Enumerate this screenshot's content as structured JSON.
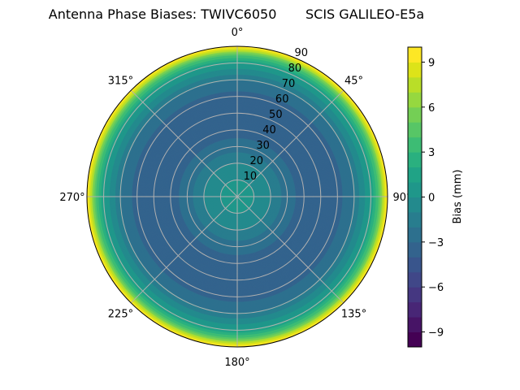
{
  "chart_data": {
    "type": "polar-contour",
    "title": "Antenna Phase Biases: TWIVC6050       SCIS GALILEO-E5a",
    "angle_ticks": [
      {
        "deg": 0,
        "label": "0°"
      },
      {
        "deg": 45,
        "label": "45°"
      },
      {
        "deg": 90,
        "label": "90°"
      },
      {
        "deg": 135,
        "label": "135°"
      },
      {
        "deg": 180,
        "label": "180°"
      },
      {
        "deg": 225,
        "label": "225°"
      },
      {
        "deg": 270,
        "label": "270°"
      },
      {
        "deg": 315,
        "label": "315°"
      }
    ],
    "radial_ticks": [
      10,
      20,
      30,
      40,
      50,
      60,
      70,
      80,
      90
    ],
    "radial_range": [
      0,
      90
    ],
    "grid": true,
    "radial_profile": {
      "zenith_angle": [
        0,
        10,
        20,
        30,
        40,
        50,
        60,
        70,
        80,
        85,
        90
      ],
      "bias": [
        0.5,
        0,
        -1,
        -2.5,
        -3.5,
        -4,
        -3.5,
        -2,
        1,
        4,
        10
      ]
    },
    "colorbar": {
      "label": "Bias (mm)",
      "range": [
        -10,
        10
      ],
      "levels": 20,
      "colormap": "viridis",
      "ticks": [
        9,
        6,
        3,
        0,
        -3,
        -6,
        -9
      ],
      "tick_labels": [
        "9",
        "6",
        "3",
        "0",
        "−3",
        "−6",
        "−9"
      ]
    }
  }
}
